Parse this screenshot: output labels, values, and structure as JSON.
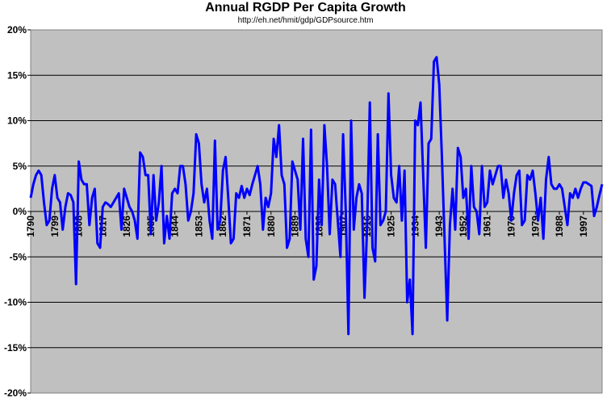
{
  "chart_data": {
    "type": "line",
    "title": "Annual RGDP Per Capita Growth",
    "subtitle": "http://eh.net/hmit/gdp/GDPsource.htm",
    "xlabel": "",
    "ylabel": "",
    "ylim": [
      -20,
      20
    ],
    "y_ticks": [
      20,
      15,
      10,
      5,
      0,
      -5,
      -10,
      -15,
      -20
    ],
    "y_tick_labels": [
      "20%",
      "15%",
      "10%",
      "5%",
      "0%",
      "-5%",
      "-10%",
      "-15%",
      "-20%"
    ],
    "x_tick_labels": [
      "1790",
      "1799",
      "1808",
      "1817",
      "1826",
      "1835",
      "1844",
      "1853",
      "1862",
      "1871",
      "1880",
      "1889",
      "1898",
      "1907",
      "1916",
      "1925",
      "1934",
      "1943",
      "1952",
      "1961",
      "1970",
      "1979",
      "1988",
      "1997"
    ],
    "x_start": 1790,
    "x_end": 2004,
    "grid": true,
    "colors": {
      "plot_bg": "#c0c0c0",
      "line": "#0000ff",
      "grid": "#000000",
      "page": "#ffffff"
    },
    "series": [
      {
        "values": [
          [
            1790,
            1.5
          ],
          [
            1791,
            3.0
          ],
          [
            1792,
            4.0
          ],
          [
            1793,
            4.5
          ],
          [
            1794,
            4.0
          ],
          [
            1795,
            1.0
          ],
          [
            1796,
            -1.5
          ],
          [
            1797,
            -1.0
          ],
          [
            1798,
            2.5
          ],
          [
            1799,
            4.0
          ],
          [
            1800,
            1.5
          ],
          [
            1801,
            1.0
          ],
          [
            1802,
            -2.0
          ],
          [
            1803,
            0.5
          ],
          [
            1804,
            2.0
          ],
          [
            1805,
            1.8
          ],
          [
            1806,
            1.0
          ],
          [
            1807,
            -8.0
          ],
          [
            1808,
            5.5
          ],
          [
            1809,
            3.5
          ],
          [
            1810,
            3.0
          ],
          [
            1811,
            3.0
          ],
          [
            1812,
            -1.5
          ],
          [
            1813,
            1.5
          ],
          [
            1814,
            2.5
          ],
          [
            1815,
            -3.5
          ],
          [
            1816,
            -4.0
          ],
          [
            1817,
            0.5
          ],
          [
            1818,
            1.0
          ],
          [
            1819,
            0.8
          ],
          [
            1820,
            0.5
          ],
          [
            1821,
            1.0
          ],
          [
            1822,
            1.5
          ],
          [
            1823,
            2.0
          ],
          [
            1824,
            -2.0
          ],
          [
            1825,
            2.5
          ],
          [
            1826,
            1.5
          ],
          [
            1827,
            0.5
          ],
          [
            1828,
            0.0
          ],
          [
            1829,
            -1.0
          ],
          [
            1830,
            -3.0
          ],
          [
            1831,
            6.5
          ],
          [
            1832,
            6.0
          ],
          [
            1833,
            4.0
          ],
          [
            1834,
            4.0
          ],
          [
            1835,
            -2.5
          ],
          [
            1836,
            4.0
          ],
          [
            1837,
            -1.0
          ],
          [
            1838,
            1.0
          ],
          [
            1839,
            5.0
          ],
          [
            1840,
            -3.5
          ],
          [
            1841,
            -0.5
          ],
          [
            1842,
            -3.0
          ],
          [
            1843,
            2.0
          ],
          [
            1844,
            2.5
          ],
          [
            1845,
            2.0
          ],
          [
            1846,
            5.0
          ],
          [
            1847,
            5.0
          ],
          [
            1848,
            3.0
          ],
          [
            1849,
            -1.0
          ],
          [
            1850,
            0.0
          ],
          [
            1851,
            2.0
          ],
          [
            1852,
            8.5
          ],
          [
            1853,
            7.5
          ],
          [
            1854,
            3.0
          ],
          [
            1855,
            1.0
          ],
          [
            1856,
            2.5
          ],
          [
            1857,
            -1.0
          ],
          [
            1858,
            -3.0
          ],
          [
            1859,
            7.8
          ],
          [
            1860,
            -2.0
          ],
          [
            1861,
            -1.0
          ],
          [
            1862,
            4.5
          ],
          [
            1863,
            6.0
          ],
          [
            1864,
            1.5
          ],
          [
            1865,
            -3.5
          ],
          [
            1866,
            -3.0
          ],
          [
            1867,
            2.0
          ],
          [
            1868,
            1.5
          ],
          [
            1869,
            2.8
          ],
          [
            1870,
            1.5
          ],
          [
            1871,
            2.5
          ],
          [
            1872,
            1.8
          ],
          [
            1873,
            3.0
          ],
          [
            1874,
            4.0
          ],
          [
            1875,
            5.0
          ],
          [
            1876,
            3.0
          ],
          [
            1877,
            -2.0
          ],
          [
            1878,
            1.5
          ],
          [
            1879,
            0.5
          ],
          [
            1880,
            2.0
          ],
          [
            1881,
            8.0
          ],
          [
            1882,
            6.0
          ],
          [
            1883,
            9.5
          ],
          [
            1884,
            4.0
          ],
          [
            1885,
            3.0
          ],
          [
            1886,
            -4.0
          ],
          [
            1887,
            -3.0
          ],
          [
            1888,
            5.5
          ],
          [
            1889,
            4.5
          ],
          [
            1890,
            3.5
          ],
          [
            1891,
            -2.0
          ],
          [
            1892,
            8.0
          ],
          [
            1893,
            -3.0
          ],
          [
            1894,
            -5.0
          ],
          [
            1895,
            9.0
          ],
          [
            1896,
            -7.5
          ],
          [
            1897,
            -6.0
          ],
          [
            1898,
            3.5
          ],
          [
            1899,
            -1.5
          ],
          [
            1900,
            9.5
          ],
          [
            1901,
            5.0
          ],
          [
            1902,
            -2.5
          ],
          [
            1903,
            3.5
          ],
          [
            1904,
            3.0
          ],
          [
            1905,
            -1.0
          ],
          [
            1906,
            -5.0
          ],
          [
            1907,
            8.5
          ],
          [
            1908,
            0.0
          ],
          [
            1909,
            -13.5
          ],
          [
            1910,
            10.0
          ],
          [
            1911,
            -2.0
          ],
          [
            1912,
            1.5
          ],
          [
            1913,
            3.0
          ],
          [
            1914,
            2.0
          ],
          [
            1915,
            -9.5
          ],
          [
            1916,
            -1.5
          ],
          [
            1917,
            12.0
          ],
          [
            1918,
            -4.0
          ],
          [
            1919,
            -5.5
          ],
          [
            1920,
            8.5
          ],
          [
            1921,
            -1.5
          ],
          [
            1922,
            -1.0
          ],
          [
            1923,
            0.0
          ],
          [
            1924,
            13.0
          ],
          [
            1925,
            4.0
          ],
          [
            1926,
            1.5
          ],
          [
            1927,
            1.0
          ],
          [
            1928,
            5.0
          ],
          [
            1929,
            -1.0
          ],
          [
            1930,
            4.5
          ],
          [
            1931,
            -10.0
          ],
          [
            1932,
            -7.5
          ],
          [
            1933,
            -13.5
          ],
          [
            1934,
            10.0
          ],
          [
            1935,
            9.5
          ],
          [
            1936,
            12.0
          ],
          [
            1937,
            4.0
          ],
          [
            1938,
            -4.0
          ],
          [
            1939,
            7.5
          ],
          [
            1940,
            8.0
          ],
          [
            1941,
            16.5
          ],
          [
            1942,
            17.0
          ],
          [
            1943,
            14.0
          ],
          [
            1944,
            6.0
          ],
          [
            1945,
            -3.0
          ],
          [
            1946,
            -12.0
          ],
          [
            1947,
            -1.5
          ],
          [
            1948,
            2.5
          ],
          [
            1949,
            -2.0
          ],
          [
            1950,
            7.0
          ],
          [
            1951,
            6.0
          ],
          [
            1952,
            1.5
          ],
          [
            1953,
            2.5
          ],
          [
            1954,
            -3.0
          ],
          [
            1955,
            5.0
          ],
          [
            1956,
            0.5
          ],
          [
            1957,
            0.0
          ],
          [
            1958,
            -2.5
          ],
          [
            1959,
            5.0
          ],
          [
            1960,
            0.5
          ],
          [
            1961,
            1.0
          ],
          [
            1962,
            4.5
          ],
          [
            1963,
            3.0
          ],
          [
            1964,
            4.0
          ],
          [
            1965,
            5.0
          ],
          [
            1966,
            5.0
          ],
          [
            1967,
            1.5
          ],
          [
            1968,
            3.5
          ],
          [
            1969,
            2.0
          ],
          [
            1970,
            -1.0
          ],
          [
            1971,
            2.0
          ],
          [
            1972,
            4.0
          ],
          [
            1973,
            4.5
          ],
          [
            1974,
            -1.5
          ],
          [
            1975,
            -1.0
          ],
          [
            1976,
            4.0
          ],
          [
            1977,
            3.5
          ],
          [
            1978,
            4.5
          ],
          [
            1979,
            2.0
          ],
          [
            1980,
            -1.0
          ],
          [
            1981,
            1.5
          ],
          [
            1982,
            -3.0
          ],
          [
            1983,
            3.5
          ],
          [
            1984,
            6.0
          ],
          [
            1985,
            3.0
          ],
          [
            1986,
            2.5
          ],
          [
            1987,
            2.5
          ],
          [
            1988,
            3.0
          ],
          [
            1989,
            2.5
          ],
          [
            1990,
            0.5
          ],
          [
            1991,
            -1.5
          ],
          [
            1992,
            2.0
          ],
          [
            1993,
            1.5
          ],
          [
            1994,
            2.5
          ],
          [
            1995,
            1.5
          ],
          [
            1996,
            2.5
          ],
          [
            1997,
            3.2
          ],
          [
            1998,
            3.2
          ],
          [
            1999,
            3.0
          ],
          [
            2000,
            2.8
          ],
          [
            2001,
            -0.5
          ],
          [
            2002,
            0.5
          ],
          [
            2003,
            1.8
          ],
          [
            2004,
            3.0
          ]
        ]
      }
    ]
  }
}
